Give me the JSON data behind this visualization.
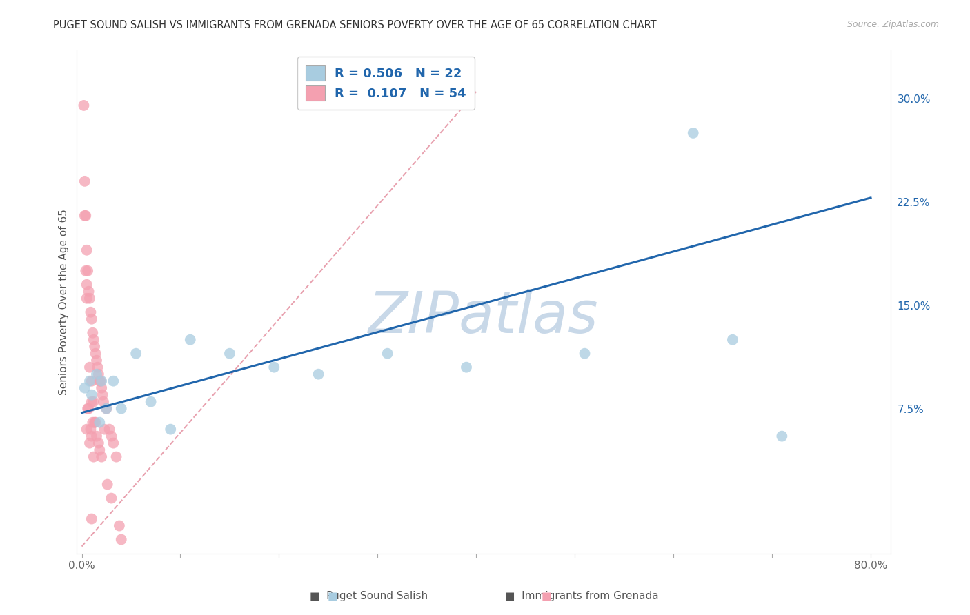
{
  "title": "PUGET SOUND SALISH VS IMMIGRANTS FROM GRENADA SENIORS POVERTY OVER THE AGE OF 65 CORRELATION CHART",
  "source": "Source: ZipAtlas.com",
  "label_blue": "Puget Sound Salish",
  "label_pink": "Immigrants from Grenada",
  "ylabel": "Seniors Poverty Over the Age of 65",
  "xlim": [
    -0.005,
    0.82
  ],
  "ylim": [
    -0.03,
    0.335
  ],
  "xticks": [
    0.0,
    0.1,
    0.2,
    0.3,
    0.4,
    0.5,
    0.6,
    0.7,
    0.8
  ],
  "xticklabels": [
    "0.0%",
    "",
    "",
    "",
    "",
    "",
    "",
    "",
    "80.0%"
  ],
  "yticks_right": [
    0.0,
    0.075,
    0.15,
    0.225,
    0.3
  ],
  "yticklabels_right": [
    "",
    "7.5%",
    "15.0%",
    "22.5%",
    "30.0%"
  ],
  "R_blue": 0.506,
  "N_blue": 22,
  "R_pink": 0.107,
  "N_pink": 54,
  "blue_fill": "#a8cce0",
  "pink_fill": "#f4a0b0",
  "blue_line": "#2166ac",
  "pink_line": "#e8a0ae",
  "blue_x": [
    0.003,
    0.008,
    0.01,
    0.015,
    0.018,
    0.02,
    0.025,
    0.032,
    0.04,
    0.055,
    0.07,
    0.09,
    0.11,
    0.15,
    0.195,
    0.24,
    0.31,
    0.39,
    0.51,
    0.62,
    0.66,
    0.71
  ],
  "blue_y": [
    0.09,
    0.095,
    0.085,
    0.1,
    0.065,
    0.095,
    0.075,
    0.095,
    0.075,
    0.115,
    0.08,
    0.06,
    0.125,
    0.115,
    0.105,
    0.1,
    0.115,
    0.105,
    0.115,
    0.275,
    0.125,
    0.055
  ],
  "pink_x": [
    0.002,
    0.003,
    0.003,
    0.004,
    0.004,
    0.005,
    0.005,
    0.005,
    0.005,
    0.006,
    0.006,
    0.007,
    0.007,
    0.008,
    0.008,
    0.008,
    0.009,
    0.009,
    0.01,
    0.01,
    0.01,
    0.01,
    0.01,
    0.011,
    0.011,
    0.012,
    0.012,
    0.012,
    0.013,
    0.013,
    0.014,
    0.014,
    0.015,
    0.015,
    0.016,
    0.017,
    0.017,
    0.018,
    0.018,
    0.019,
    0.02,
    0.02,
    0.021,
    0.022,
    0.023,
    0.025,
    0.026,
    0.028,
    0.03,
    0.03,
    0.032,
    0.035,
    0.038,
    0.04
  ],
  "pink_y": [
    0.295,
    0.24,
    0.215,
    0.215,
    0.175,
    0.19,
    0.165,
    0.155,
    0.06,
    0.175,
    0.075,
    0.16,
    0.075,
    0.155,
    0.105,
    0.05,
    0.145,
    0.06,
    0.14,
    0.095,
    0.08,
    0.055,
    -0.005,
    0.13,
    0.065,
    0.125,
    0.08,
    0.04,
    0.12,
    0.065,
    0.115,
    0.065,
    0.11,
    0.055,
    0.105,
    0.1,
    0.05,
    0.095,
    0.045,
    0.095,
    0.09,
    0.04,
    0.085,
    0.08,
    0.06,
    0.075,
    0.02,
    0.06,
    0.055,
    0.01,
    0.05,
    0.04,
    -0.01,
    -0.02
  ],
  "blue_trendline_x": [
    0.0,
    0.8
  ],
  "blue_trendline_y": [
    0.072,
    0.228
  ],
  "pink_trendline_x": [
    0.0,
    0.4
  ],
  "pink_trendline_y": [
    -0.025,
    0.305
  ],
  "watermark_text": "ZIPatlas",
  "watermark_color": "#c8d8e8",
  "bg_color": "#ffffff",
  "grid_color": "#e0e0e0"
}
